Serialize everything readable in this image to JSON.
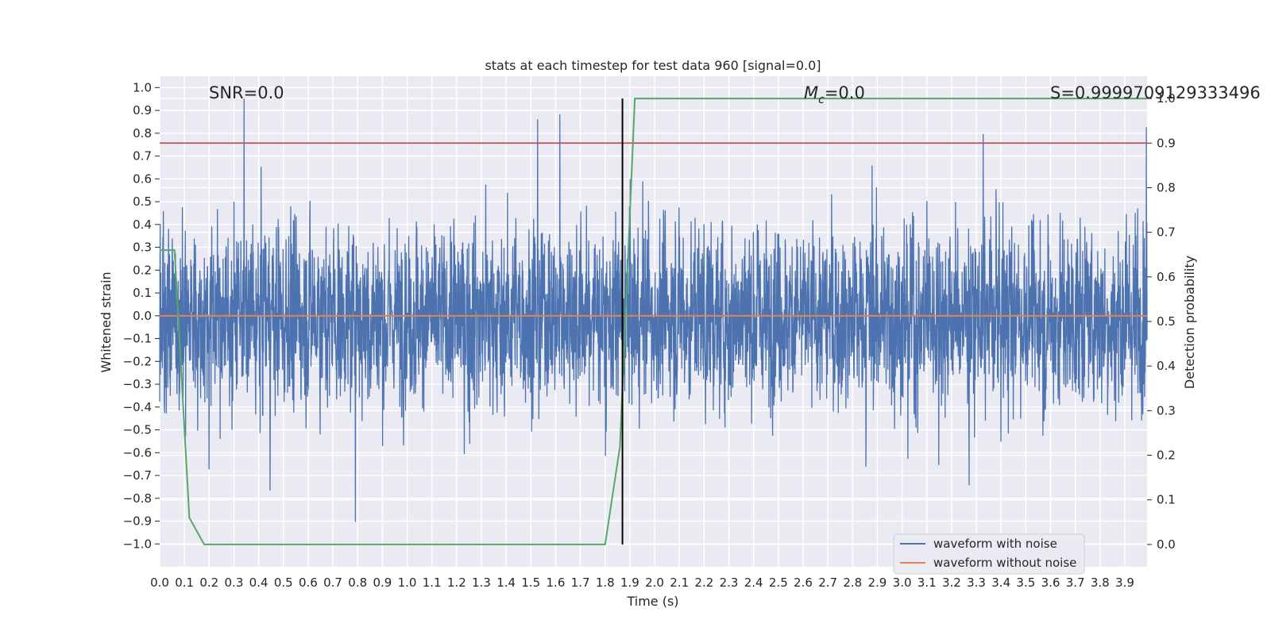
{
  "chart_data": {
    "type": "line",
    "title": "stats at each timestep for test data 960 [signal=0.0]",
    "xlabel": "Time (s)",
    "ylabel_left": "Whitened strain",
    "ylabel_right": "Detection probability",
    "xlim": [
      0.0,
      3.99
    ],
    "ylim_left": [
      -1.1,
      1.05
    ],
    "ylim_right": [
      -0.05,
      1.05
    ],
    "xticks": [
      "0.0",
      "0.1",
      "0.2",
      "0.3",
      "0.4",
      "0.5",
      "0.6",
      "0.7",
      "0.8",
      "0.9",
      "1.0",
      "1.1",
      "1.2",
      "1.3",
      "1.4",
      "1.5",
      "1.6",
      "1.7",
      "1.8",
      "1.9",
      "2.0",
      "2.1",
      "2.2",
      "2.3",
      "2.4",
      "2.5",
      "2.6",
      "2.7",
      "2.8",
      "2.9",
      "3.0",
      "3.1",
      "3.2",
      "3.3",
      "3.4",
      "3.5",
      "3.6",
      "3.7",
      "3.8",
      "3.9"
    ],
    "yticks_left": [
      "1.0",
      "0.9",
      "0.8",
      "0.7",
      "0.6",
      "0.5",
      "0.4",
      "0.3",
      "0.2",
      "0.1",
      "0.0",
      "-0.1",
      "-0.2",
      "-0.3",
      "-0.4",
      "-0.5",
      "-0.6",
      "-0.7",
      "-0.8",
      "-0.9",
      "-1.0"
    ],
    "yticks_right": [
      "1.0",
      "0.9",
      "0.8",
      "0.7",
      "0.6",
      "0.5",
      "0.4",
      "0.3",
      "0.2",
      "0.1",
      "0.0"
    ],
    "annotations": {
      "snr": "SNR=0.0",
      "mc_symbol": "M",
      "mc_sub": "c",
      "mc_value": "=0.0",
      "s": "S=0.9999709129333496"
    },
    "series": [
      {
        "name": "waveform with noise",
        "color": "#4c72b0",
        "axis": "left",
        "kind": "noise",
        "envelope": [
          -1.0,
          1.0
        ],
        "typical_amplitude": 0.38
      },
      {
        "name": "waveform without noise",
        "color": "#dd8452",
        "axis": "left",
        "x": [
          0.0,
          3.99
        ],
        "y": [
          0.0,
          0.0
        ]
      },
      {
        "name": "detection probability",
        "color": "#55a868",
        "axis": "right",
        "legend": false,
        "x": [
          0.0,
          0.06,
          0.12,
          0.18,
          1.44,
          1.74,
          1.8,
          1.86,
          1.92,
          3.99
        ],
        "y": [
          0.66,
          0.66,
          0.06,
          0.0,
          0.0,
          0.0,
          0.0,
          0.22,
          1.0,
          1.0
        ]
      }
    ],
    "hlines": [
      {
        "axis": "right",
        "y": 0.9,
        "color": "#c44e52"
      }
    ],
    "vlines": [
      {
        "x": 1.87,
        "color": "#000000",
        "y_range_right": [
          0.0,
          1.0
        ]
      }
    ],
    "legend": {
      "position": "lower-right",
      "entries": [
        "waveform with noise",
        "waveform without noise"
      ]
    }
  }
}
